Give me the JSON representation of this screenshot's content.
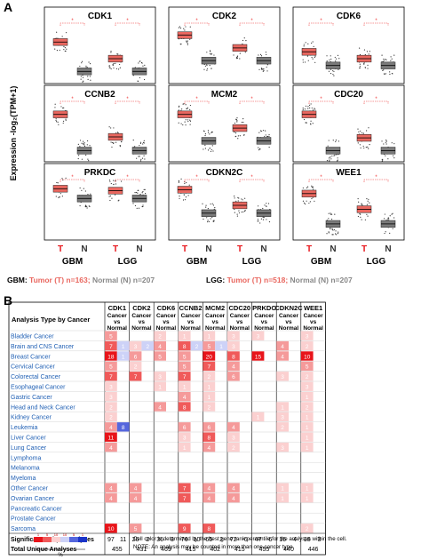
{
  "panelA": {
    "letter": "A",
    "ylabel": "Expression -log₂(TPM+1)",
    "xticks": [
      "T",
      "N",
      "T",
      "N"
    ],
    "groups": [
      "GBM",
      "LGG"
    ],
    "genes": [
      {
        "name": "CDK1",
        "gbm": [
          3.7,
          0.7
        ],
        "lgg": [
          2.0,
          0.7
        ]
      },
      {
        "name": "CDK2",
        "gbm": [
          4.4,
          1.8
        ],
        "lgg": [
          3.1,
          1.8
        ]
      },
      {
        "name": "CDK6",
        "gbm": [
          2.7,
          1.3
        ],
        "lgg": [
          2.0,
          1.3
        ]
      },
      {
        "name": "CCNB2",
        "gbm": [
          4.3,
          0.6
        ],
        "lgg": [
          2.0,
          0.6
        ]
      },
      {
        "name": "MCM2",
        "gbm": [
          4.3,
          1.6
        ],
        "lgg": [
          2.9,
          1.6
        ]
      },
      {
        "name": "CDC20",
        "gbm": [
          4.3,
          0.6
        ],
        "lgg": [
          1.9,
          0.6
        ]
      },
      {
        "name": "PRKDC",
        "gbm": [
          4.7,
          3.7
        ],
        "lgg": [
          4.5,
          3.7
        ]
      },
      {
        "name": "CDKN2C",
        "gbm": [
          4.6,
          2.2
        ],
        "lgg": [
          3.0,
          2.2
        ]
      },
      {
        "name": "WEE1",
        "gbm": [
          4.2,
          1.1
        ],
        "lgg": [
          2.6,
          1.1
        ]
      }
    ],
    "legend1": {
      "label": "GBM:",
      "tumor": "Tumor (T)",
      "tn": "n=163;",
      "normal": "Normal (N)",
      "nn": "n=207"
    },
    "legend2": {
      "label": "LGG:",
      "tumor": "Tumor (T)",
      "tn": "n=518;",
      "normal": "Normal (N)",
      "nn": "n=207"
    }
  },
  "panelB": {
    "letter": "B",
    "header": "Analysis Type by Cancer",
    "genes": [
      "CDK1",
      "CDK2",
      "CDK6",
      "CCNB2",
      "MCM2",
      "CDC20",
      "PRKDC",
      "CDKN2C",
      "WEE1"
    ],
    "sub": [
      "Cancer",
      "vs",
      "Normal"
    ],
    "cancers": [
      "Bladder Cancer",
      "Brain and CNS Cancer",
      "Breast Cancer",
      "Cervical Cancer",
      "Colorectal Cancer",
      "Esophageal Cancer",
      "Gastric Cancer",
      "Head and Neck Cancer",
      "Kidney Cancer",
      "Leukemia",
      "Liver Cancer",
      "Lung Cancer",
      "Lymphoma",
      "Melanoma",
      "Myeloma",
      "Other Cancer",
      "Ovarian Cancer",
      "Pancreatic Cancer",
      "Prostate Cancer",
      "Sarcoma"
    ],
    "cells": [
      [
        "5",
        "",
        "",
        "",
        "2",
        "",
        "1",
        "",
        "1",
        "",
        "3",
        "",
        "3",
        "",
        "",
        "",
        "3",
        ""
      ],
      [
        "7",
        "1",
        "3",
        "2",
        "4",
        "",
        "8",
        "2",
        "5",
        "1",
        "3",
        "",
        "",
        "",
        "4",
        "",
        "2",
        ""
      ],
      [
        "18",
        "1",
        "6",
        "",
        "5",
        "",
        "5",
        "",
        "20",
        "",
        "8",
        "",
        "15",
        "",
        "4",
        "",
        "10",
        ""
      ],
      [
        "5",
        "",
        "2",
        "",
        "",
        "",
        "5",
        "",
        "7",
        "",
        "4",
        "",
        "",
        "",
        "",
        "",
        "5",
        ""
      ],
      [
        "7",
        "",
        "7",
        "",
        "3",
        "",
        "7",
        "",
        "2",
        "",
        "6",
        "",
        "",
        "",
        "3",
        "",
        "2",
        ""
      ],
      [
        "3",
        "",
        "",
        "",
        "1",
        "",
        "1",
        "",
        "1",
        "",
        "",
        "",
        "",
        "",
        "",
        "",
        "3",
        ""
      ],
      [
        "3",
        "",
        "",
        "",
        "",
        "",
        "4",
        "",
        "1",
        "",
        "",
        "",
        "",
        "",
        "",
        "",
        "1",
        ""
      ],
      [
        "2",
        "",
        "",
        "",
        "4",
        "",
        "8",
        "",
        "2",
        "",
        "",
        "",
        "",
        "",
        "1",
        "",
        "2",
        ""
      ],
      [
        "2",
        "",
        "",
        "",
        "",
        "",
        "",
        "",
        "",
        "",
        "",
        "",
        "1",
        "",
        "3",
        "",
        "1",
        ""
      ],
      [
        "4",
        "8",
        "",
        "",
        "",
        "",
        "6",
        "",
        "6",
        "",
        "4",
        "",
        "",
        "",
        "2",
        "",
        "1",
        ""
      ],
      [
        "11",
        "",
        "",
        "",
        "",
        "",
        "3",
        "",
        "8",
        "",
        "3",
        "",
        "",
        "",
        "",
        "",
        "1",
        ""
      ],
      [
        "4",
        "",
        "",
        "",
        "",
        "",
        "1",
        "",
        "4",
        "",
        "2",
        "",
        "",
        "",
        "3",
        "",
        "1",
        ""
      ],
      [
        "",
        "",
        "",
        "",
        "",
        "",
        "",
        "",
        "",
        "",
        "",
        "",
        "",
        "",
        "",
        "",
        "",
        ""
      ],
      [
        "",
        "",
        "",
        "",
        "",
        "",
        "",
        "",
        "",
        "",
        "",
        "",
        "",
        "",
        "",
        "",
        "",
        ""
      ],
      [
        "",
        "",
        "",
        "",
        "",
        "",
        "",
        "",
        "",
        "",
        "",
        "",
        "",
        "",
        "",
        "",
        "",
        ""
      ],
      [
        "4",
        "",
        "4",
        "",
        "",
        "",
        "7",
        "",
        "4",
        "",
        "4",
        "",
        "",
        "",
        "1",
        "",
        "1",
        ""
      ],
      [
        "4",
        "",
        "4",
        "",
        "",
        "",
        "7",
        "",
        "4",
        "",
        "4",
        "",
        "",
        "",
        "1",
        "",
        "1",
        ""
      ],
      [
        "",
        "",
        "",
        "",
        "",
        "",
        "",
        "",
        "",
        "",
        "",
        "",
        "",
        "",
        "",
        "",
        "",
        ""
      ],
      [
        "",
        "",
        "",
        "",
        "",
        "",
        "",
        "",
        "",
        "",
        "",
        "",
        "",
        "",
        "",
        "",
        "",
        ""
      ],
      [
        "10",
        "",
        "5",
        "",
        "",
        "",
        "9",
        "",
        "8",
        "",
        "",
        "",
        "",
        "",
        "",
        "",
        "2",
        ""
      ]
    ],
    "sig_label": "Significant Unique Analyses",
    "total_label": "Total Unique Analyses",
    "sig": [
      "97",
      "11",
      "26",
      "2",
      "36",
      "3",
      "76",
      "10",
      "65",
      "2",
      "72",
      "6",
      "47",
      "6",
      "16",
      "4",
      "18",
      "3"
    ],
    "total": [
      "455",
      "431",
      "469",
      "415",
      "402",
      "415",
      "455",
      "440",
      "446"
    ],
    "caption1": "Cell color is determined by the best gene rank percentile for the analyses within the cell.",
    "caption2": "NOTE: An analysis may be counted in more than one cancer type.",
    "scale": [
      "1",
      "5",
      "10",
      "10",
      "5",
      "1"
    ],
    "pct": "%"
  },
  "colors": {
    "tumor": "#e9675f",
    "normal": "#7a7a7a",
    "red": "#e8141a",
    "blue": "#1a33c8",
    "sig": "#1f5fb4"
  }
}
